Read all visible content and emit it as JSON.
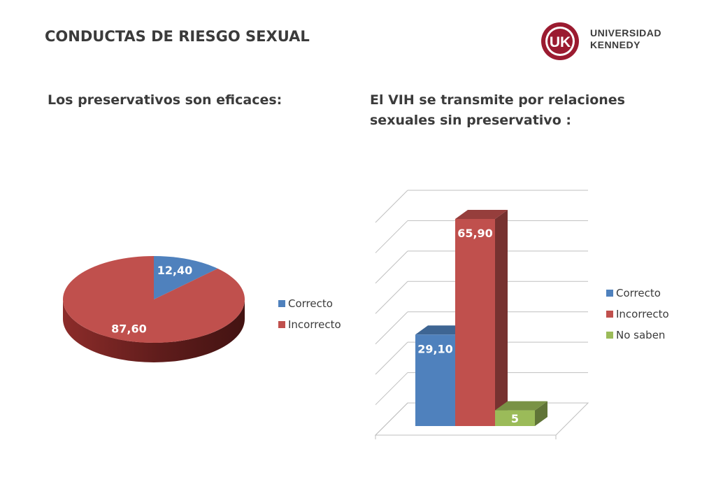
{
  "slide": {
    "title": "CONDUCTAS DE RIESGO SEXUAL",
    "logo": {
      "mark": "UK",
      "line1": "UNIVERSIDAD",
      "line2": "KENNEDY",
      "color": "#9b1b30"
    }
  },
  "chart_data": [
    {
      "type": "pie",
      "title": "Los preservativos son eficaces:",
      "labels": [
        "Correcto",
        "Incorrecto"
      ],
      "values": [
        12.4,
        87.6
      ],
      "value_labels": [
        "12,40",
        "87,60"
      ],
      "colors": [
        "#4f81bd",
        "#c0504d"
      ],
      "legend": "right"
    },
    {
      "type": "bar",
      "title": "El VIH se transmite por relaciones sexuales sin preservativo :",
      "categories": [
        "Correcto",
        "Incorrecto",
        "No saben"
      ],
      "values": [
        29.1,
        65.9,
        5
      ],
      "value_labels": [
        "29,10",
        "65,90",
        "5"
      ],
      "colors": [
        "#4f81bd",
        "#c0504d",
        "#9bbb59"
      ],
      "ylim": [
        0,
        70
      ],
      "grid": true,
      "legend": "right"
    }
  ]
}
